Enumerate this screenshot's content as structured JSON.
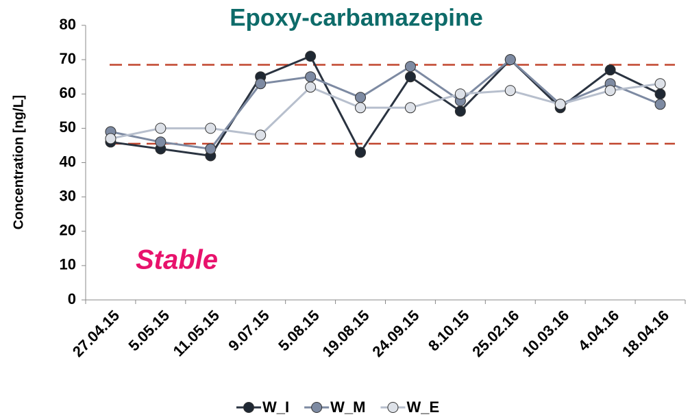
{
  "chart_data": {
    "type": "line",
    "title": "Epoxy-carbamazepine",
    "ylabel": "Concentration [ng/L]",
    "annotation": "Stable",
    "categories": [
      "27.04.15",
      "5.05.15",
      "11.05.15",
      "9.07.15",
      "5.08.15",
      "19.08.15",
      "24.09.15",
      "8.10.15",
      "25.02.16",
      "10.03.16",
      "4.04.16",
      "18.04.16"
    ],
    "series": [
      {
        "name": "W_I",
        "color": "#1f2833",
        "line_color": "#2a3340",
        "values": [
          46,
          44,
          42,
          65,
          71,
          43,
          65,
          55,
          70,
          56,
          67,
          60
        ]
      },
      {
        "name": "W_M",
        "color": "#7d8aa2",
        "line_color": "#7d8aa2",
        "values": [
          49,
          46,
          44,
          63,
          65,
          59,
          68,
          58,
          70,
          57,
          63,
          57
        ]
      },
      {
        "name": "W_E",
        "color": "#dde1e8",
        "line_color": "#b7bfcd",
        "values": [
          47,
          50,
          50,
          48,
          62,
          56,
          56,
          60,
          61,
          57,
          61,
          63
        ]
      }
    ],
    "reference_lines": {
      "values": [
        68.5,
        45.5
      ],
      "color": "#c0432b"
    },
    "ylim": [
      0,
      80
    ],
    "yticks": [
      0,
      10,
      20,
      30,
      40,
      50,
      60,
      70,
      80
    ],
    "grid": false
  }
}
